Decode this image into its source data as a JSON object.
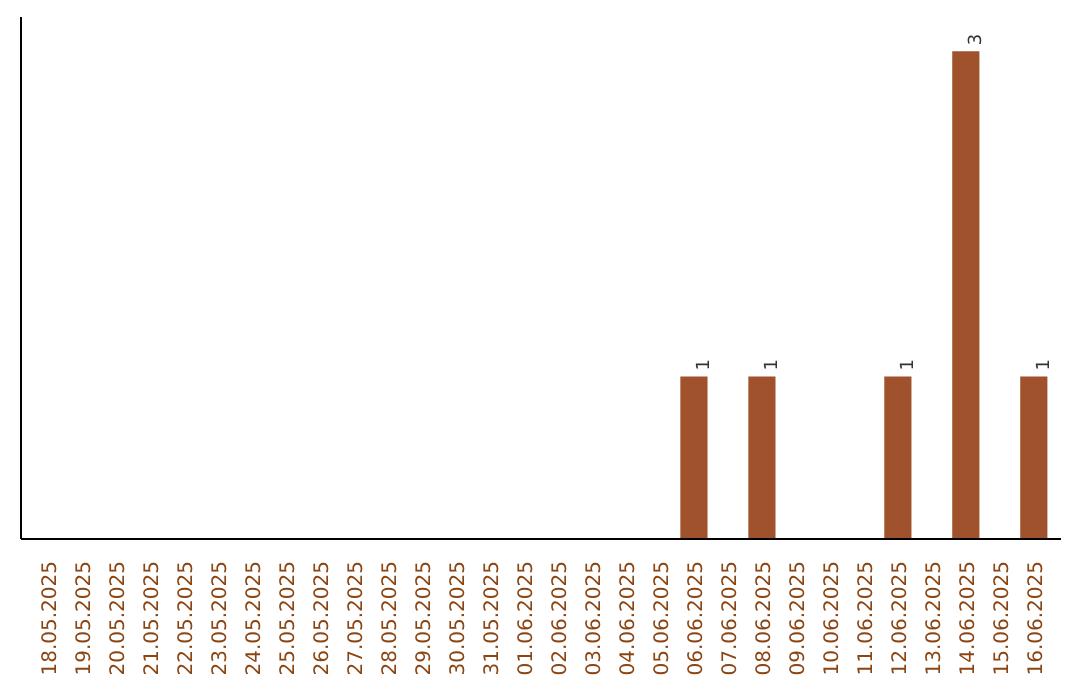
{
  "chart_data": {
    "type": "bar",
    "categories": [
      "18.05.2025",
      "19.05.2025",
      "20.05.2025",
      "21.05.2025",
      "22.05.2025",
      "23.05.2025",
      "24.05.2025",
      "25.05.2025",
      "26.05.2025",
      "27.05.2025",
      "28.05.2025",
      "29.05.2025",
      "30.05.2025",
      "31.05.2025",
      "01.06.2025",
      "02.06.2025",
      "03.06.2025",
      "04.06.2025",
      "05.06.2025",
      "06.06.2025",
      "07.06.2025",
      "08.06.2025",
      "09.06.2025",
      "10.06.2025",
      "11.06.2025",
      "12.06.2025",
      "13.06.2025",
      "14.06.2025",
      "15.06.2025",
      "16.06.2025"
    ],
    "values": [
      null,
      null,
      null,
      null,
      null,
      null,
      null,
      null,
      null,
      null,
      null,
      null,
      null,
      null,
      null,
      null,
      null,
      null,
      null,
      1,
      null,
      1,
      null,
      null,
      null,
      1,
      null,
      3,
      null,
      1
    ],
    "data_labels": true,
    "color": "#a0522d"
  }
}
